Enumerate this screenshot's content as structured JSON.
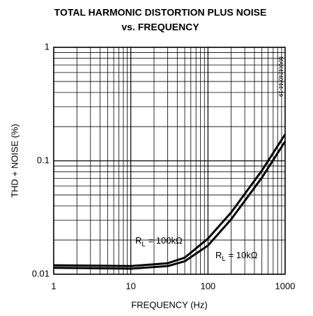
{
  "chart_data": {
    "type": "line",
    "title_lines": [
      "TOTAL HARMONIC DISTORTION PLUS NOISE",
      "vs. FREQUENCY"
    ],
    "x_label": "FREQUENCY (Hz)",
    "y_label": "THD + NOISE (%)",
    "side_note": "MAX4240/44-19",
    "xscale": "log",
    "yscale": "log",
    "xlim": [
      1,
      1000
    ],
    "ylim": [
      0.01,
      1
    ],
    "xticks": [
      1,
      10,
      100,
      1000
    ],
    "yticks": [
      0.01,
      0.1,
      1
    ],
    "grid": true,
    "x": [
      1,
      10,
      30,
      50,
      100,
      200,
      500,
      1000
    ],
    "series": [
      {
        "name": [
          "R",
          "L",
          " = 100kΩ"
        ],
        "color": "#000000",
        "values": [
          0.012,
          0.0118,
          0.0125,
          0.014,
          0.0206,
          0.035,
          0.082,
          0.171
        ]
      },
      {
        "name": [
          "R",
          "L",
          " = 10kΩ"
        ],
        "color": "#000000",
        "values": [
          0.0114,
          0.0112,
          0.0118,
          0.013,
          0.0179,
          0.0305,
          0.071,
          0.148
        ]
      }
    ]
  }
}
